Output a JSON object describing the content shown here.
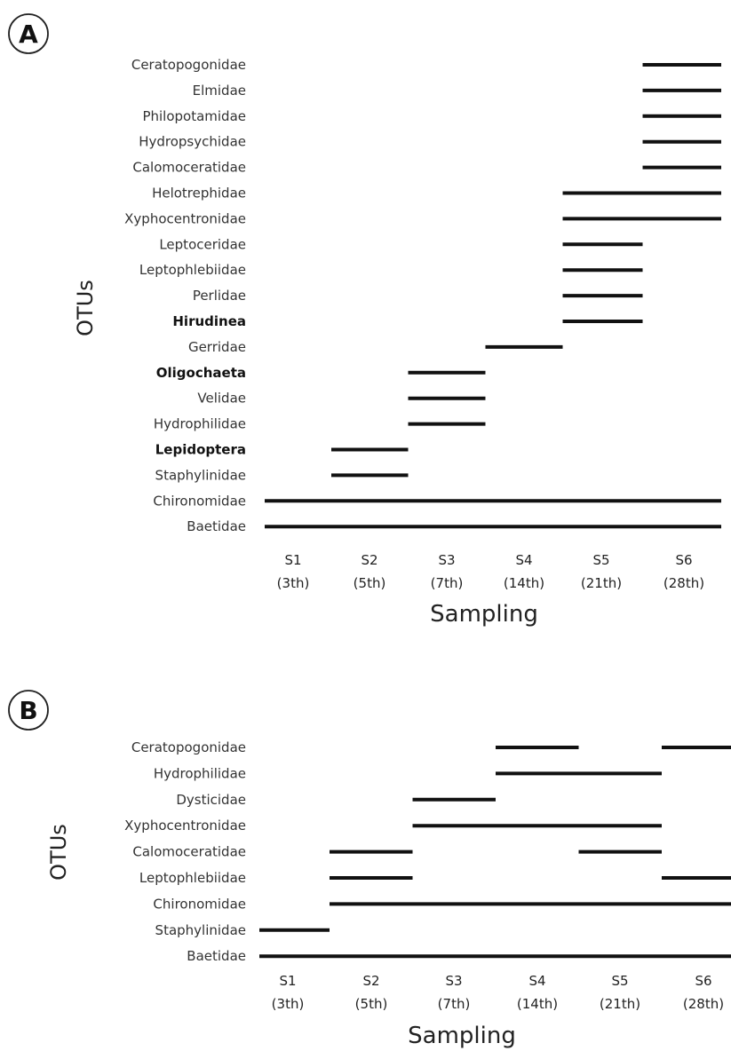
{
  "chart_data": [
    {
      "type": "gantt",
      "panel_label": "A",
      "ylabel": "OTUs",
      "xlabel": "Sampling",
      "x_ticks": [
        {
          "line1": "S1",
          "line2": "(3th)"
        },
        {
          "line1": "S2",
          "line2": "(5th)"
        },
        {
          "line1": "S3",
          "line2": "(7th)"
        },
        {
          "line1": "S4",
          "line2": "(14th)"
        },
        {
          "line1": "S5",
          "line2": "(21th)"
        },
        {
          "line1": "S6",
          "line2": "(28th)"
        }
      ],
      "rows": [
        {
          "name": "Ceratopogonidae",
          "bold": false,
          "segments": [
            [
              6,
              7
            ]
          ]
        },
        {
          "name": "Elmidae",
          "bold": false,
          "segments": [
            [
              6,
              7
            ]
          ]
        },
        {
          "name": "Philopotamidae",
          "bold": false,
          "segments": [
            [
              6,
              7
            ]
          ]
        },
        {
          "name": "Hydropsychidae",
          "bold": false,
          "segments": [
            [
              6,
              7
            ]
          ]
        },
        {
          "name": "Calomoceratidae",
          "bold": false,
          "segments": [
            [
              6,
              7
            ]
          ]
        },
        {
          "name": "Helotrephidae",
          "bold": false,
          "segments": [
            [
              5,
              7
            ]
          ]
        },
        {
          "name": "Xyphocentronidae",
          "bold": false,
          "segments": [
            [
              5,
              7
            ]
          ]
        },
        {
          "name": "Leptoceridae",
          "bold": false,
          "segments": [
            [
              5,
              6
            ]
          ]
        },
        {
          "name": "Leptophlebiidae",
          "bold": false,
          "segments": [
            [
              5,
              6
            ]
          ]
        },
        {
          "name": "Perlidae",
          "bold": false,
          "segments": [
            [
              5,
              6
            ]
          ]
        },
        {
          "name": "Hirudinea",
          "bold": true,
          "segments": [
            [
              5,
              6
            ]
          ]
        },
        {
          "name": "Gerridae",
          "bold": false,
          "segments": [
            [
              4,
              5
            ]
          ]
        },
        {
          "name": "Oligochaeta",
          "bold": true,
          "segments": [
            [
              3,
              4
            ]
          ]
        },
        {
          "name": "Velidae",
          "bold": false,
          "segments": [
            [
              3,
              4
            ]
          ]
        },
        {
          "name": "Hydrophilidae",
          "bold": false,
          "segments": [
            [
              3,
              4
            ]
          ]
        },
        {
          "name": "Lepidoptera",
          "bold": true,
          "segments": [
            [
              2,
              3
            ]
          ]
        },
        {
          "name": "Staphylinidae",
          "bold": false,
          "segments": [
            [
              2,
              3
            ]
          ]
        },
        {
          "name": "Chironomidae",
          "bold": false,
          "segments": [
            [
              1,
              7
            ]
          ]
        },
        {
          "name": "Baetidae",
          "bold": false,
          "segments": [
            [
              1,
              7
            ]
          ]
        }
      ]
    },
    {
      "type": "gantt",
      "panel_label": "B",
      "ylabel": "OTUs",
      "xlabel": "Sampling",
      "x_ticks": [
        {
          "line1": "S1",
          "line2": "(3th)"
        },
        {
          "line1": "S2",
          "line2": "(5th)"
        },
        {
          "line1": "S3",
          "line2": "(7th)"
        },
        {
          "line1": "S4",
          "line2": "(14th)"
        },
        {
          "line1": "S5",
          "line2": "(21th)"
        },
        {
          "line1": "S6",
          "line2": "(28th)"
        }
      ],
      "rows": [
        {
          "name": "Ceratopogonidae",
          "bold": false,
          "segments": [
            [
              4,
              5
            ],
            [
              6,
              7
            ]
          ]
        },
        {
          "name": "Hydrophilidae",
          "bold": false,
          "segments": [
            [
              4,
              6
            ]
          ]
        },
        {
          "name": "Dysticidae",
          "bold": false,
          "segments": [
            [
              3,
              4
            ]
          ]
        },
        {
          "name": "Xyphocentronidae",
          "bold": false,
          "segments": [
            [
              3,
              6
            ]
          ]
        },
        {
          "name": "Calomoceratidae",
          "bold": false,
          "segments": [
            [
              2,
              3
            ],
            [
              5,
              6
            ]
          ]
        },
        {
          "name": "Leptophlebiidae",
          "bold": false,
          "segments": [
            [
              2,
              3
            ],
            [
              6,
              7
            ]
          ]
        },
        {
          "name": "Chironomidae",
          "bold": false,
          "segments": [
            [
              2,
              7
            ]
          ]
        },
        {
          "name": "Staphylinidae",
          "bold": false,
          "segments": [
            [
              1,
              2
            ]
          ]
        },
        {
          "name": "Baetidae",
          "bold": false,
          "segments": [
            [
              1,
              7
            ]
          ]
        }
      ]
    }
  ]
}
